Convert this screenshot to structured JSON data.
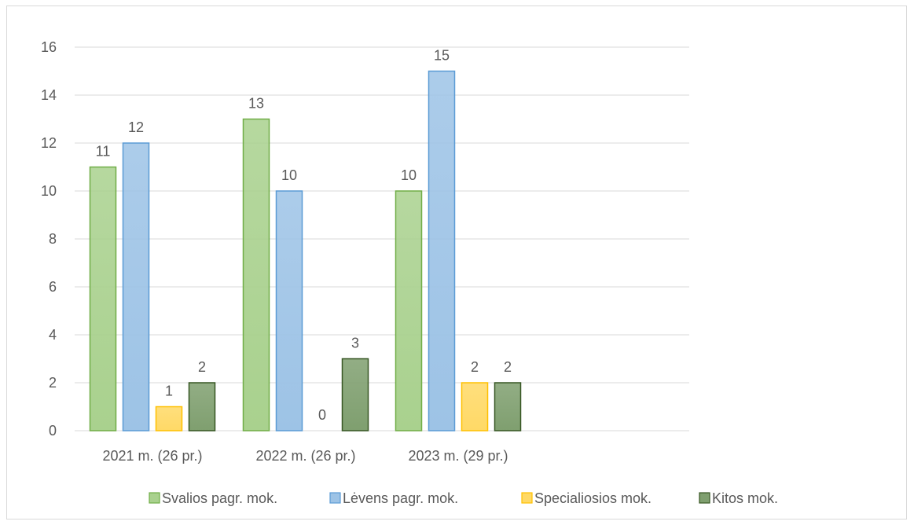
{
  "chart_data": {
    "type": "bar",
    "title": "",
    "xlabel": "",
    "ylabel": "",
    "categories": [
      "2021 m. (26 pr.)",
      "2022 m. (26 pr.)",
      "2023 m. (29 pr.)"
    ],
    "ylim": [
      0,
      16
    ],
    "yticks": [
      "0",
      "2",
      "4",
      "6",
      "8",
      "10",
      "12",
      "14",
      "16"
    ],
    "grid": true,
    "legend_position": "bottom",
    "series": [
      {
        "name": "Svalios pagr. mok.",
        "values": [
          11,
          13,
          10
        ],
        "color": "#a9d18e",
        "stroke": "#70ad47"
      },
      {
        "name": "Lėvens pagr. mok.",
        "values": [
          12,
          10,
          15
        ],
        "color": "#9dc3e6",
        "stroke": "#5b9bd5"
      },
      {
        "name": "Specialiosios mok.",
        "values": [
          1,
          0,
          2
        ],
        "color": "#ffd966",
        "stroke": "#ffc000"
      },
      {
        "name": "Kitos mok.",
        "values": [
          2,
          3,
          2
        ],
        "color": "#7f9f6f",
        "stroke": "#375623"
      }
    ]
  }
}
